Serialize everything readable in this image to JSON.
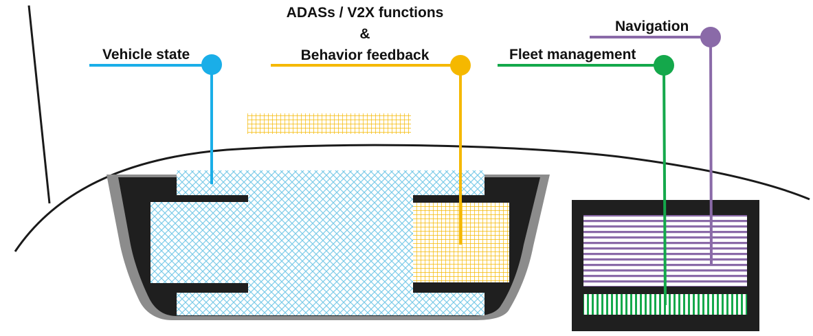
{
  "labels": {
    "vehicle_state": "Vehicle state",
    "adas_line1": "ADASs / V2X functions",
    "adas_line2": "&",
    "adas_line3": "Behavior feedback",
    "fleet": "Fleet management",
    "navigation": "Navigation"
  },
  "colors": {
    "vehicle_state": "#1aaee8",
    "adas": "#f5b800",
    "fleet": "#14a84b",
    "navigation": "#8a6aa8",
    "dashboard_dark": "#1f1f1f",
    "dashboard_rim": "#8c8c8c",
    "outline": "#1a1a1a"
  }
}
